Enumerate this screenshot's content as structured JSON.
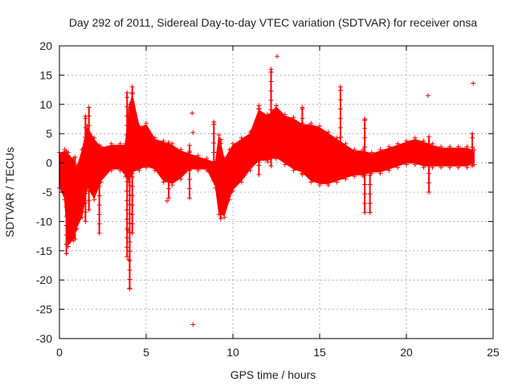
{
  "chart_data": {
    "type": "scatter",
    "title": "Day 292 of 2011, Sidereal Day-to-day VTEC variation (SDTVAR) for receiver onsa",
    "xlabel": "GPS time / hours",
    "ylabel": "SDTVAR / TECUs",
    "xlim": [
      0,
      25
    ],
    "ylim": [
      -30,
      20
    ],
    "x_ticks": [
      0,
      5,
      10,
      15,
      20,
      25
    ],
    "y_ticks": [
      -30,
      -25,
      -20,
      -15,
      -10,
      -5,
      0,
      5,
      10,
      15,
      20
    ],
    "grid": true,
    "marker": "+",
    "color": "#ff0000",
    "envelope": {
      "x": [
        0.0,
        0.3,
        0.5,
        0.8,
        1.0,
        1.3,
        1.6,
        2.0,
        2.4,
        3.0,
        3.5,
        3.8,
        4.0,
        4.2,
        4.6,
        5.0,
        5.5,
        6.0,
        6.5,
        7.0,
        7.5,
        8.0,
        8.5,
        9.0,
        9.2,
        9.5,
        9.8,
        10.0,
        10.5,
        11.0,
        11.5,
        12.0,
        12.5,
        13.0,
        13.5,
        14.0,
        14.5,
        15.0,
        15.5,
        16.0,
        16.5,
        17.0,
        17.5,
        18.0,
        18.5,
        19.0,
        19.5,
        20.0,
        20.5,
        21.0,
        21.5,
        22.0,
        22.5,
        23.0,
        23.5,
        23.9
      ],
      "upper": [
        1.5,
        2.0,
        1.5,
        0.5,
        -1.0,
        2.0,
        6.0,
        4.0,
        2.5,
        3.0,
        3.0,
        3.0,
        9.0,
        11.5,
        6.0,
        6.5,
        4.0,
        3.5,
        3.0,
        2.0,
        1.5,
        1.0,
        0.5,
        0.0,
        4.5,
        0.5,
        2.0,
        3.0,
        4.0,
        5.0,
        9.0,
        8.0,
        9.5,
        8.0,
        7.5,
        6.5,
        6.5,
        6.0,
        5.0,
        4.0,
        3.0,
        2.0,
        2.0,
        1.5,
        2.0,
        2.5,
        3.0,
        3.5,
        4.0,
        3.5,
        3.0,
        2.5,
        2.5,
        2.5,
        2.5,
        2.0
      ],
      "lower": [
        -4.0,
        -6.0,
        -14.0,
        -13.0,
        -11.0,
        -9.0,
        -4.0,
        -6.0,
        -3.0,
        -1.0,
        -1.0,
        -2.0,
        -3.0,
        -1.5,
        -1.0,
        -0.5,
        -1.0,
        -3.0,
        -3.5,
        -2.5,
        -1.0,
        -1.0,
        -1.0,
        -4.0,
        -8.5,
        -9.0,
        -6.0,
        -4.5,
        -3.0,
        -1.0,
        0.5,
        0.5,
        1.0,
        0.0,
        -1.0,
        -1.5,
        -3.0,
        -3.5,
        -3.5,
        -3.0,
        -2.5,
        -2.0,
        -2.0,
        -1.5,
        -1.5,
        -1.0,
        -0.5,
        0.0,
        0.0,
        -0.5,
        -0.5,
        -0.5,
        -0.5,
        -0.5,
        -0.5,
        0.0
      ]
    },
    "spikes": [
      {
        "x": 0.4,
        "y0": -15.5,
        "y1": 2.0
      },
      {
        "x": 0.9,
        "y0": -13.0,
        "y1": 1.0
      },
      {
        "x": 1.5,
        "y0": -10.0,
        "y1": 8.0
      },
      {
        "x": 1.7,
        "y0": -8.0,
        "y1": 9.5
      },
      {
        "x": 2.3,
        "y0": -12.0,
        "y1": 3.0
      },
      {
        "x": 3.9,
        "y0": -16.0,
        "y1": 12.0
      },
      {
        "x": 4.05,
        "y0": -21.5,
        "y1": 10.0
      },
      {
        "x": 4.2,
        "y0": -12.0,
        "y1": 13.0
      },
      {
        "x": 6.3,
        "y0": -6.0,
        "y1": 3.5
      },
      {
        "x": 7.5,
        "y0": -6.0,
        "y1": 3.0
      },
      {
        "x": 8.9,
        "y0": -3.0,
        "y1": 7.0
      },
      {
        "x": 9.3,
        "y0": -9.5,
        "y1": 4.0
      },
      {
        "x": 11.5,
        "y0": -2.0,
        "y1": 9.8
      },
      {
        "x": 12.2,
        "y0": -0.5,
        "y1": 16.0
      },
      {
        "x": 14.0,
        "y0": -2.0,
        "y1": 9.5
      },
      {
        "x": 16.2,
        "y0": -2.0,
        "y1": 13.0
      },
      {
        "x": 17.6,
        "y0": -8.5,
        "y1": 7.5
      },
      {
        "x": 17.9,
        "y0": -8.5,
        "y1": 0.5
      },
      {
        "x": 21.3,
        "y0": -5.0,
        "y1": 4.5
      },
      {
        "x": 23.8,
        "y0": -0.5,
        "y1": 5.0
      }
    ],
    "outliers": [
      {
        "x": 7.7,
        "y": -27.6
      },
      {
        "x": 7.65,
        "y": 8.5
      },
      {
        "x": 7.7,
        "y": 5.2
      },
      {
        "x": 6.2,
        "y": -6.5
      },
      {
        "x": 12.55,
        "y": 18.2
      },
      {
        "x": 21.25,
        "y": 11.5
      },
      {
        "x": 23.85,
        "y": 13.6
      },
      {
        "x": 17.6,
        "y": 7.3
      },
      {
        "x": 3.95,
        "y": -11.5
      },
      {
        "x": 4.0,
        "y": -16.5
      },
      {
        "x": 4.05,
        "y": -21.4
      }
    ]
  }
}
